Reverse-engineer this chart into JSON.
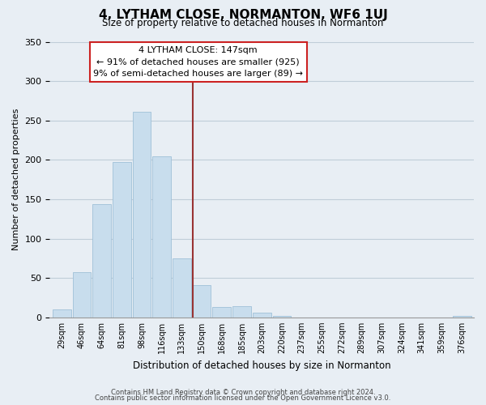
{
  "title": "4, LYTHAM CLOSE, NORMANTON, WF6 1UJ",
  "subtitle": "Size of property relative to detached houses in Normanton",
  "xlabel": "Distribution of detached houses by size in Normanton",
  "ylabel": "Number of detached properties",
  "bar_labels": [
    "29sqm",
    "46sqm",
    "64sqm",
    "81sqm",
    "98sqm",
    "116sqm",
    "133sqm",
    "150sqm",
    "168sqm",
    "185sqm",
    "203sqm",
    "220sqm",
    "237sqm",
    "255sqm",
    "272sqm",
    "289sqm",
    "307sqm",
    "324sqm",
    "341sqm",
    "359sqm",
    "376sqm"
  ],
  "bar_values": [
    10,
    57,
    144,
    197,
    261,
    204,
    75,
    41,
    13,
    14,
    6,
    2,
    0,
    0,
    0,
    0,
    0,
    0,
    0,
    0,
    2
  ],
  "bar_color": "#c8dded",
  "bar_edge_color": "#a0c0d8",
  "vline_x_index": 7,
  "annotation_title": "4 LYTHAM CLOSE: 147sqm",
  "annotation_line1": "← 91% of detached houses are smaller (925)",
  "annotation_line2": "9% of semi-detached houses are larger (89) →",
  "annotation_box_color": "#ffffff",
  "annotation_box_edge_color": "#cc2222",
  "vline_color": "#993333",
  "ylim": [
    0,
    350
  ],
  "yticks": [
    0,
    50,
    100,
    150,
    200,
    250,
    300,
    350
  ],
  "footnote1": "Contains HM Land Registry data © Crown copyright and database right 2024.",
  "footnote2": "Contains public sector information licensed under the Open Government Licence v3.0.",
  "bg_color": "#e8eef4",
  "plot_bg_color": "#e8eef4",
  "grid_color": "#c0cdd8"
}
